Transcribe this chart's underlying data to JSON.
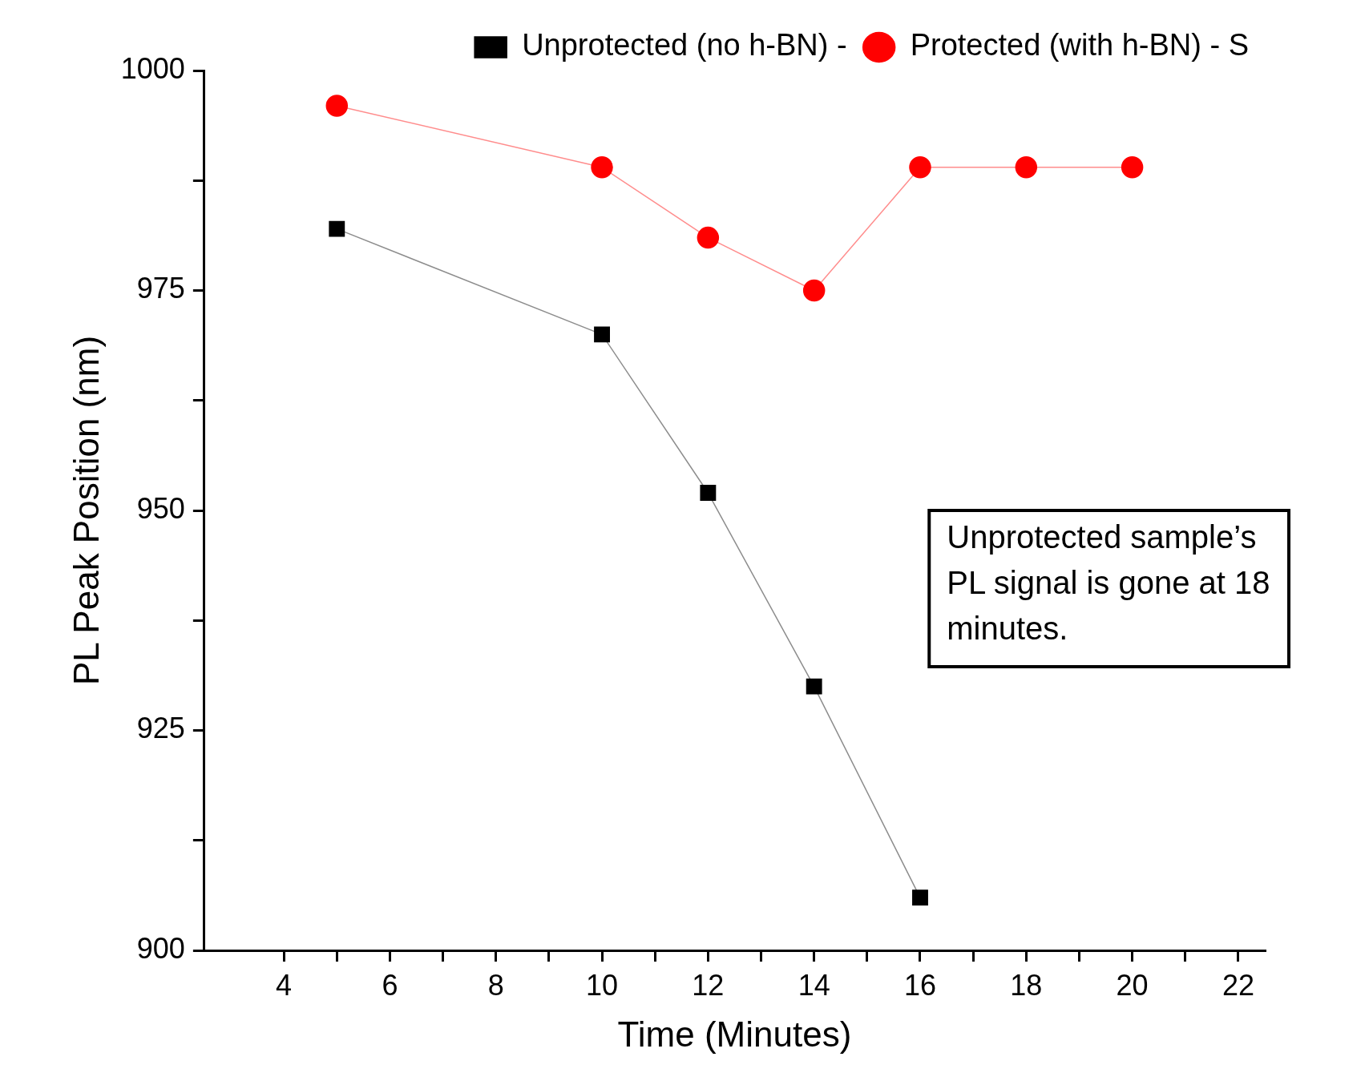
{
  "chart_data": {
    "type": "line",
    "xlabel": "Time (Minutes)",
    "ylabel": "PL Peak Position (nm)",
    "xlim": [
      2.5,
      22.5
    ],
    "xticks": [
      4,
      6,
      8,
      10,
      12,
      14,
      16,
      18,
      20,
      22
    ],
    "ylim": [
      900,
      1000
    ],
    "yticks": [
      900,
      925,
      950,
      975,
      1000
    ],
    "series": [
      {
        "name": "Unprotected (no h-BN) -",
        "color": "#000000",
        "marker": "square",
        "x": [
          5,
          10,
          12,
          14,
          16
        ],
        "values": [
          982,
          970,
          952,
          930,
          906
        ]
      },
      {
        "name": "Protected (with h-BN) - S",
        "color": "#ff0000",
        "marker": "circle",
        "x": [
          5,
          10,
          12,
          14,
          16,
          18,
          20
        ],
        "values": [
          996,
          989,
          981,
          975,
          989,
          989,
          989
        ]
      }
    ],
    "legend": "top right",
    "grid": false,
    "annotations": [
      "Unprotected sample’s PL signal is gone at 18 minutes."
    ]
  }
}
